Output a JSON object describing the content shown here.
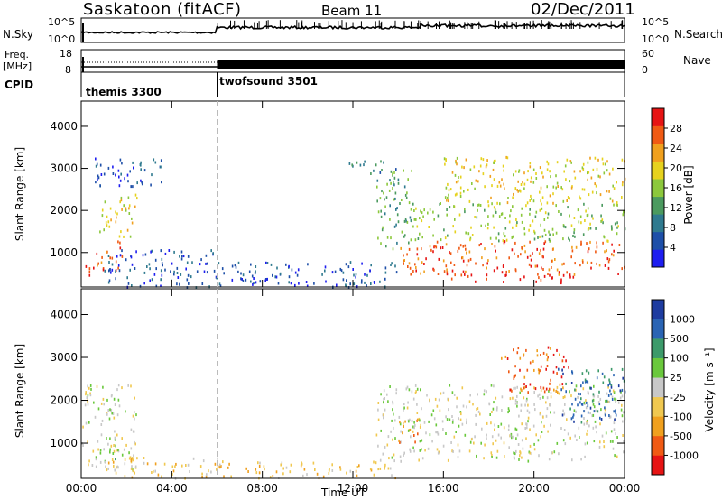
{
  "header": {
    "station": "Saskatoon (fitACF)",
    "beam": "Beam 11",
    "date": "02/Dec/2011"
  },
  "panel_labels": {
    "nsky": "N.Sky",
    "nsearch": "N.Search",
    "freq_line1": "Freq.",
    "freq_line2": "[MHz]",
    "nave": "Nave",
    "cpid": "CPID"
  },
  "scales": {
    "noise_left_top": "10^5",
    "noise_left_bottom": "10^0",
    "noise_right_top": "10^5",
    "noise_right_bottom": "10^0",
    "freq_left_top": "18",
    "freq_left_bottom": "8",
    "nave_right_top": "60",
    "nave_right_bottom": "0"
  },
  "cpid_programs": [
    {
      "name": "themis 3300",
      "start_hour": 0
    },
    {
      "name": "twofsound 3501",
      "start_hour": 6
    }
  ],
  "colors": {
    "power": [
      "#1e1ef0",
      "#1e4fa8",
      "#2f7a8f",
      "#4b9a5f",
      "#8cc83c",
      "#e6d21e",
      "#f0a01e",
      "#f05a14",
      "#e61414"
    ],
    "velocity": [
      "#e61414",
      "#f05a14",
      "#f0a01e",
      "#f0c850",
      "#c8c8c8",
      "#6ac83c",
      "#3c9a6a",
      "#2a64b4",
      "#1e3ca0"
    ],
    "ground": "#c0c0c0",
    "freq_line": "#000000"
  },
  "chart_data": [
    {
      "type": "heatmap",
      "name_on_chart": "Power",
      "ylabel": "Slant Range [km]",
      "colorbar_label": "Power [dB]",
      "colorbar_ticks": [
        "28",
        "24",
        "20",
        "16",
        "12",
        "8",
        "4"
      ],
      "xlim": [
        0,
        24
      ],
      "ylim": [
        180,
        4600
      ],
      "y_ticks": [
        "1000",
        "2000",
        "3000",
        "4000"
      ],
      "regions": [
        {
          "x": [
            0.0,
            0.6
          ],
          "y": [
            400,
            800
          ],
          "level": 8
        },
        {
          "x": [
            0.6,
            1.8
          ],
          "y": [
            600,
            1300
          ],
          "level": 7
        },
        {
          "x": [
            0.8,
            2.5
          ],
          "y": [
            1400,
            2400
          ],
          "level": 5
        },
        {
          "x": [
            0.5,
            3.6
          ],
          "y": [
            2600,
            3300
          ],
          "level": 1
        },
        {
          "x": [
            1.0,
            6.0
          ],
          "y": [
            200,
            1100
          ],
          "level": 1
        },
        {
          "x": [
            6.0,
            14.0
          ],
          "y": [
            200,
            800
          ],
          "level": 1
        },
        {
          "x": [
            11.8,
            14.0
          ],
          "y": [
            2900,
            3200
          ],
          "level": 2
        },
        {
          "x": [
            13.0,
            14.6
          ],
          "y": [
            1100,
            3000
          ],
          "level": 3
        },
        {
          "x": [
            14.0,
            24.0
          ],
          "y": [
            500,
            1300
          ],
          "level": 7
        },
        {
          "x": [
            16.0,
            22.0
          ],
          "y": [
            300,
            500
          ],
          "level": 8
        },
        {
          "x": [
            14.5,
            24.0
          ],
          "y": [
            1300,
            2200
          ],
          "level": 4
        },
        {
          "x": [
            16.0,
            24.0
          ],
          "y": [
            2200,
            3300
          ],
          "level": 5
        }
      ]
    },
    {
      "type": "heatmap",
      "name_on_chart": "Velocity",
      "ylabel": "Slant Range [km]",
      "colorbar_label": "Velocity [m s⁻¹]",
      "colorbar_ticks": [
        "1000",
        "500",
        "100",
        "25",
        "-25",
        "-100",
        "-500",
        "-1000"
      ],
      "xlabel": "Time UT",
      "xlim": [
        0,
        24
      ],
      "ylim": [
        180,
        4600
      ],
      "x_ticks": [
        "00:00",
        "04:00",
        "08:00",
        "12:00",
        "16:00",
        "20:00",
        "00:00"
      ],
      "y_ticks": [
        "1000",
        "2000",
        "3000",
        "4000"
      ],
      "regions": [
        {
          "x": [
            0.0,
            2.4
          ],
          "y": [
            400,
            2400
          ],
          "level": 4
        },
        {
          "x": [
            0.6,
            1.6
          ],
          "y": [
            600,
            1000
          ],
          "level": 5
        },
        {
          "x": [
            1.0,
            6.0
          ],
          "y": [
            200,
            700
          ],
          "level": 3
        },
        {
          "x": [
            6.0,
            14.0
          ],
          "y": [
            200,
            600
          ],
          "level": 3
        },
        {
          "x": [
            13.0,
            24.0
          ],
          "y": [
            600,
            2400
          ],
          "level": 4
        },
        {
          "x": [
            14.0,
            15.0
          ],
          "y": [
            1000,
            1600
          ],
          "level": 2
        },
        {
          "x": [
            18.5,
            21.5
          ],
          "y": [
            2200,
            3300
          ],
          "level": 1
        },
        {
          "x": [
            21.0,
            24.0
          ],
          "y": [
            1500,
            2800
          ],
          "level": 7
        }
      ]
    }
  ]
}
